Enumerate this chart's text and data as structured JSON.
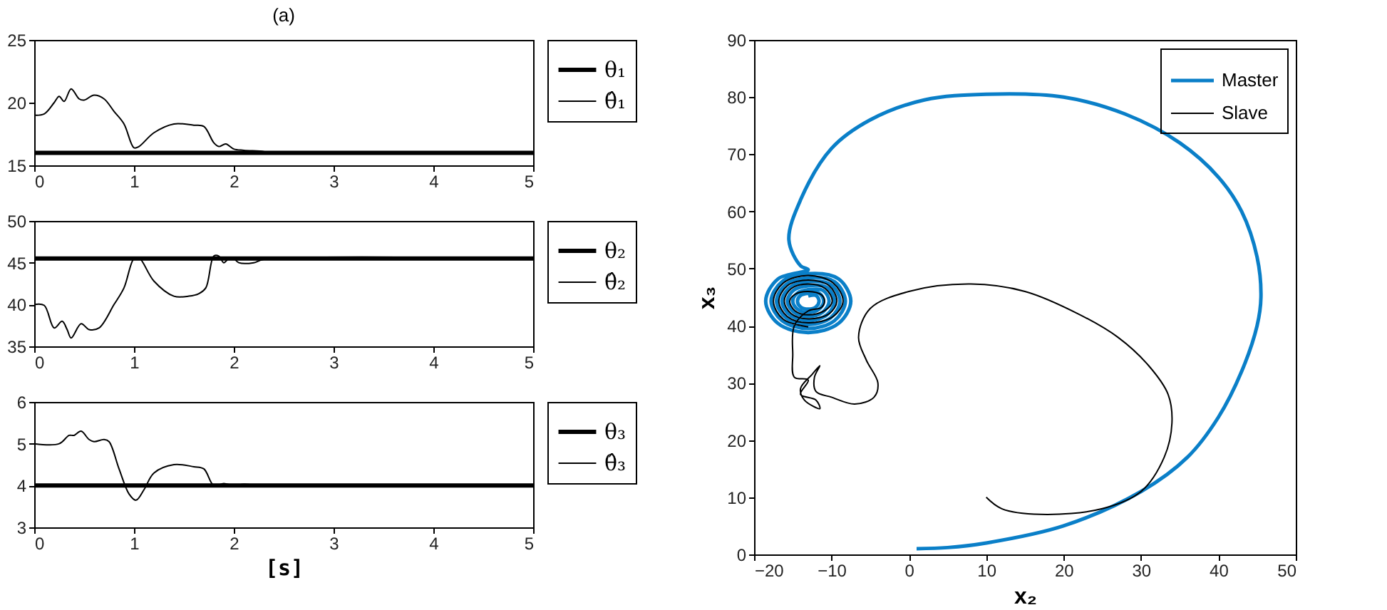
{
  "chart_data": [
    {
      "type": "line",
      "title": "(a)",
      "xlim": [
        0,
        5
      ],
      "xticks": [
        0,
        1,
        2,
        3,
        4,
        5
      ],
      "ylim": [
        15,
        25
      ],
      "yticks": [
        15,
        20,
        25
      ],
      "grid": false,
      "legend": "right",
      "series": [
        {
          "name": "θ₁",
          "color": "#000000",
          "x": [
            0,
            5
          ],
          "values": [
            16,
            16
          ]
        },
        {
          "name": "θ̂₁",
          "color": "#000000",
          "x": [
            0,
            0.1,
            0.2,
            0.25,
            0.3,
            0.37,
            0.45,
            0.5,
            0.6,
            0.7,
            0.8,
            0.9,
            1.0,
            1.05,
            1.2,
            1.4,
            1.6,
            1.7,
            1.8,
            1.85,
            1.92,
            2.0,
            2.1,
            2.3,
            2.35,
            5
          ],
          "values": [
            19,
            19.1,
            20,
            20.5,
            20.1,
            21.1,
            20.3,
            20.2,
            20.6,
            20.3,
            19.3,
            18.3,
            16.4,
            16.5,
            17.6,
            18.3,
            18.2,
            18.1,
            16.8,
            16.5,
            16.7,
            16.3,
            16.2,
            16.1,
            16,
            16
          ]
        }
      ]
    },
    {
      "type": "line",
      "xlim": [
        0,
        5
      ],
      "xticks": [
        0,
        1,
        2,
        3,
        4,
        5
      ],
      "ylim": [
        35,
        50
      ],
      "yticks": [
        35,
        40,
        45,
        50
      ],
      "grid": false,
      "legend": "right",
      "series": [
        {
          "name": "θ₂",
          "color": "#000000",
          "x": [
            0,
            5
          ],
          "values": [
            45.5,
            45.5
          ]
        },
        {
          "name": "θ̂₂",
          "color": "#000000",
          "x": [
            0,
            0.1,
            0.2,
            0.28,
            0.33,
            0.37,
            0.47,
            0.55,
            0.65,
            0.8,
            0.9,
            1.0,
            1.05,
            1.2,
            1.4,
            1.55,
            1.65,
            1.72,
            1.8,
            1.85,
            1.9,
            1.95,
            2.0,
            2.05,
            2.2,
            2.3,
            5
          ],
          "values": [
            40,
            39.9,
            37.2,
            38,
            37,
            36,
            37.7,
            37,
            37.2,
            40,
            42,
            45.5,
            45.6,
            42.8,
            41,
            41,
            41.3,
            42,
            45.8,
            45.8,
            45,
            45.5,
            45.5,
            45,
            45,
            45.4,
            45.5
          ]
        }
      ]
    },
    {
      "type": "line",
      "xlabel": "[s]",
      "xlim": [
        0,
        5
      ],
      "xticks": [
        0,
        1,
        2,
        3,
        4,
        5
      ],
      "ylim": [
        3,
        6
      ],
      "yticks": [
        3,
        4,
        5,
        6
      ],
      "grid": false,
      "legend": "right",
      "series": [
        {
          "name": "θ₃",
          "color": "#000000",
          "x": [
            0,
            5
          ],
          "values": [
            4,
            4
          ]
        },
        {
          "name": "θ̂₃",
          "color": "#000000",
          "x": [
            0,
            0.25,
            0.35,
            0.4,
            0.47,
            0.55,
            0.6,
            0.7,
            0.75,
            0.85,
            0.95,
            1.02,
            1.1,
            1.2,
            1.4,
            1.6,
            1.7,
            1.8,
            1.9,
            2.0,
            2.1,
            2.3,
            5
          ],
          "values": [
            5,
            5,
            5.2,
            5.2,
            5.3,
            5.1,
            5.05,
            5.1,
            5.05,
            4.4,
            3.8,
            3.65,
            3.9,
            4.3,
            4.5,
            4.45,
            4.4,
            4.0,
            4.05,
            4.0,
            4.03,
            4.0,
            4.0
          ]
        }
      ]
    },
    {
      "type": "line",
      "xlabel": "x₂",
      "ylabel": "x₃",
      "xlim": [
        -20,
        50
      ],
      "xticks": [
        -20,
        -10,
        0,
        10,
        20,
        30,
        40,
        50
      ],
      "ylim": [
        0,
        90
      ],
      "yticks": [
        0,
        10,
        20,
        30,
        40,
        50,
        60,
        70,
        80,
        90
      ],
      "grid": false,
      "legend": "top right",
      "series": [
        {
          "name": "Master",
          "color": "#0a7fc8",
          "x": [
            1,
            5,
            10,
            20,
            30,
            36,
            40,
            43,
            45,
            45.5,
            45,
            43,
            40,
            35,
            28,
            20,
            10,
            2,
            -5,
            -10,
            -14,
            -15.5,
            -14,
            -13,
            -16.9,
            -18.5,
            -16.9,
            -13,
            -9.1,
            -7.5,
            -9.1,
            -13,
            -16.4,
            -17.8,
            -16.4,
            -13,
            -9.6,
            -8.2,
            -9.6,
            -13,
            -15.9,
            -17.1,
            -15.9,
            -13,
            -10.1,
            -8.9,
            -10.1,
            -13,
            -15.4,
            -16.4,
            -15.4,
            -13,
            -10.6,
            -9.6,
            -10.6,
            -13,
            -14.9,
            -15.7,
            -14.9,
            -13,
            -11.1,
            -10.3,
            -11.1,
            -13,
            -14.4,
            -15,
            -14.4,
            -13,
            -11.6,
            -11,
            -11.6,
            -13,
            -14,
            -14.4,
            -14,
            -13,
            -12,
            -11.6,
            -12,
            -13
          ],
          "values": [
            1,
            1.2,
            2,
            5,
            11,
            17,
            24,
            32,
            40,
            45,
            52,
            60,
            66,
            72,
            77,
            80,
            80.5,
            79.5,
            76,
            71,
            62,
            55,
            50.5,
            49.8,
            48.2,
            44.3,
            40.4,
            38.8,
            40.4,
            44.3,
            48.2,
            49.1,
            47.7,
            44.3,
            40.9,
            39.5,
            40.9,
            44.3,
            47.7,
            48.4,
            47.2,
            44.3,
            41.4,
            40.2,
            41.4,
            44.3,
            47.2,
            47.7,
            46.7,
            44.3,
            41.9,
            40.9,
            41.9,
            44.3,
            46.7,
            47.0,
            46.2,
            44.3,
            42.4,
            41.6,
            42.4,
            44.3,
            46.2,
            46.3,
            45.7,
            44.3,
            42.9,
            42.3,
            42.9,
            44.3,
            45.7,
            45.7,
            45.3,
            44.3,
            43.3,
            42.9,
            43.3,
            44.3,
            45.3,
            45.2
          ]
        },
        {
          "name": "Slave",
          "color": "#000000",
          "x": [
            10,
            12,
            17,
            25,
            30,
            33,
            34,
            33.5,
            31,
            27,
            22,
            15,
            8,
            0,
            -5,
            -6.5,
            -5.5,
            -4,
            -4.5,
            -7,
            -10,
            -12,
            -12.2,
            -11.5,
            -12.5,
            -14,
            -13.5,
            -11.5,
            -12,
            -14,
            -13,
            -14.8,
            -15,
            -14.8,
            -13,
            -11.3,
            -10.9,
            -11.3,
            -13,
            -14.7,
            -15.4,
            -14.7,
            -13,
            -10.8,
            -9.9,
            -10.8,
            -13,
            -15.2,
            -16.1,
            -15.2,
            -13,
            -10.3,
            -9.3,
            -10.3,
            -13,
            -15.7,
            -16.8,
            -15.7,
            -13,
            -9.8,
            -8.5,
            -9.8,
            -13,
            -16.2,
            -17.5,
            -16.2,
            -13
          ],
          "values": [
            10,
            8,
            7,
            8,
            11,
            17,
            23,
            28,
            33,
            38,
            42,
            46,
            47.3,
            46,
            43,
            38,
            34,
            30,
            27.5,
            26.3,
            27.5,
            28.5,
            31,
            33,
            31.5,
            29,
            27,
            25.5,
            27,
            28,
            30.5,
            31,
            35,
            40,
            42.6,
            43.2,
            44.3,
            45.4,
            46,
            45.5,
            44.3,
            42.6,
            41.9,
            42.7,
            44.3,
            46.5,
            47.3,
            46.5,
            44.3,
            42.1,
            41.2,
            42.1,
            44.3,
            47.0,
            48.0,
            47.0,
            44.3,
            41.6,
            40.5,
            41.6,
            44.3,
            47.5,
            48.8,
            47.5,
            44.3,
            41.1,
            39.8
          ]
        }
      ]
    }
  ]
}
